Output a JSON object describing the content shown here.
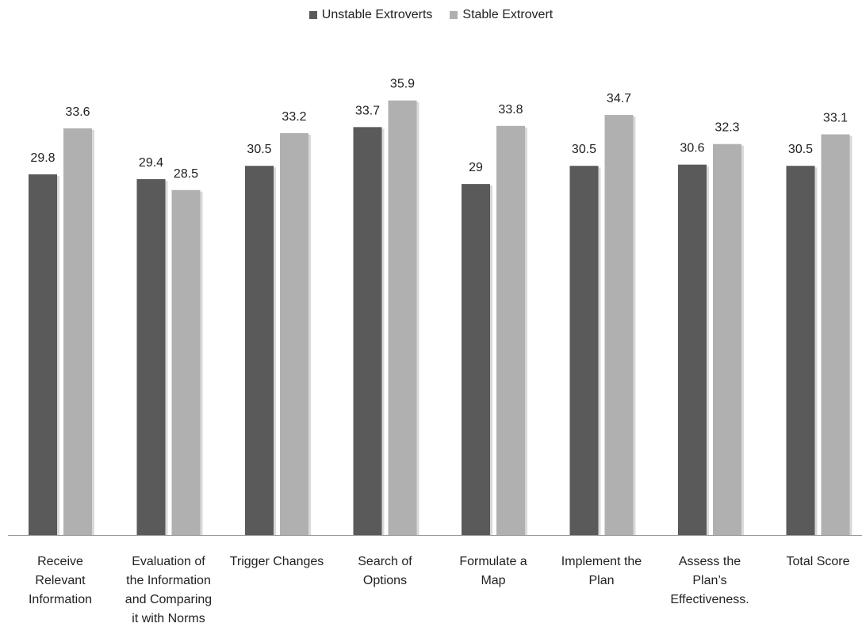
{
  "chart_data": {
    "type": "bar",
    "categories": [
      [
        "Receive",
        "Relevant",
        "Information"
      ],
      [
        "Evaluation of",
        "the Information",
        "and Comparing",
        "it with Norms"
      ],
      [
        "Trigger Changes"
      ],
      [
        "Search of",
        "Options"
      ],
      [
        "Formulate a",
        "Map"
      ],
      [
        "Implement the",
        "Plan"
      ],
      [
        "Assess the",
        "Plan’s",
        "Effectiveness."
      ],
      [
        "Total Score"
      ]
    ],
    "series": [
      {
        "name": "Unstable Extroverts",
        "values": [
          29.8,
          29.4,
          30.5,
          33.7,
          29,
          30.5,
          30.6,
          30.5
        ],
        "labels": [
          "29.8",
          "29.4",
          "30.5",
          "33.7",
          "29",
          "30.5",
          "30.6",
          "30.5"
        ]
      },
      {
        "name": "Stable Extrovert",
        "values": [
          33.6,
          28.5,
          33.2,
          35.9,
          33.8,
          34.7,
          32.3,
          33.1
        ],
        "labels": [
          "33.6",
          "28.5",
          "33.2",
          "35.9",
          "33.8",
          "34.7",
          "32.3",
          "33.1"
        ]
      }
    ],
    "colors": [
      "#5a5a5a",
      "#b0b0b0"
    ],
    "ylim": [
      0,
      36.8
    ],
    "legend": "top-center",
    "grid": false
  }
}
